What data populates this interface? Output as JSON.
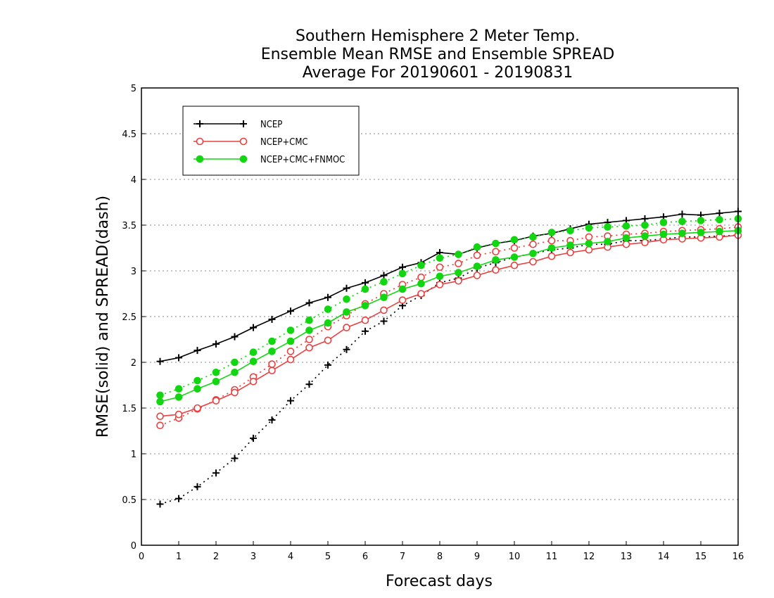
{
  "chart_data": {
    "type": "line",
    "title": [
      "Southern Hemisphere 2 Meter Temp.",
      "Ensemble Mean RMSE and Ensemble SPREAD",
      "Average For 20190601 - 20190831"
    ],
    "xlabel": "Forecast days",
    "ylabel": "RMSE(solid) and SPREAD(dash)",
    "xlim": [
      0,
      16
    ],
    "ylim": [
      0,
      5
    ],
    "xticks": [
      "0",
      "1",
      "2",
      "3",
      "4",
      "5",
      "6",
      "7",
      "8",
      "9",
      "10",
      "11",
      "12",
      "13",
      "14",
      "15",
      "16"
    ],
    "yticks": [
      "0",
      "0.5",
      "1",
      "1.5",
      "2",
      "2.5",
      "3",
      "3.5",
      "4",
      "4.5",
      "5"
    ],
    "grid": "horizontal dotted",
    "legend_position": "top-left",
    "x": [
      0.5,
      1,
      1.5,
      2,
      2.5,
      3,
      3.5,
      4,
      4.5,
      5,
      5.5,
      6,
      6.5,
      7,
      7.5,
      8,
      8.5,
      9,
      9.5,
      10,
      10.5,
      11,
      11.5,
      12,
      12.5,
      13,
      13.5,
      14,
      14.5,
      15,
      15.5,
      16
    ],
    "series": [
      {
        "name": "NCEP",
        "color": "#000000",
        "marker": "plus",
        "rmse": [
          2.01,
          2.05,
          2.13,
          2.2,
          2.28,
          2.38,
          2.47,
          2.56,
          2.65,
          2.71,
          2.81,
          2.87,
          2.95,
          3.04,
          3.09,
          3.2,
          3.18,
          3.25,
          3.3,
          3.33,
          3.38,
          3.41,
          3.46,
          3.51,
          3.53,
          3.55,
          3.57,
          3.59,
          3.62,
          3.61,
          3.63,
          3.65
        ],
        "spread": [
          0.45,
          0.51,
          0.64,
          0.79,
          0.95,
          1.17,
          1.37,
          1.58,
          1.76,
          1.97,
          2.14,
          2.34,
          2.45,
          2.62,
          2.73,
          2.87,
          2.92,
          3.03,
          3.09,
          3.15,
          3.19,
          3.23,
          3.25,
          3.29,
          3.29,
          3.33,
          3.33,
          3.35,
          3.37,
          3.37,
          3.38,
          3.39
        ]
      },
      {
        "name": "NCEP+CMC",
        "color": "#ec4040",
        "marker": "open-circle",
        "rmse": [
          1.41,
          1.43,
          1.5,
          1.58,
          1.67,
          1.79,
          1.91,
          2.03,
          2.16,
          2.24,
          2.38,
          2.46,
          2.57,
          2.68,
          2.75,
          2.85,
          2.89,
          2.95,
          3.01,
          3.06,
          3.1,
          3.16,
          3.2,
          3.23,
          3.26,
          3.29,
          3.31,
          3.34,
          3.35,
          3.36,
          3.37,
          3.39
        ],
        "spread": [
          1.31,
          1.39,
          1.49,
          1.59,
          1.7,
          1.84,
          1.98,
          2.12,
          2.25,
          2.39,
          2.51,
          2.64,
          2.75,
          2.85,
          2.93,
          3.04,
          3.08,
          3.17,
          3.21,
          3.25,
          3.29,
          3.33,
          3.33,
          3.37,
          3.38,
          3.4,
          3.41,
          3.43,
          3.44,
          3.45,
          3.46,
          3.48
        ]
      },
      {
        "name": "NCEP+CMC+FNMOC",
        "color": "#11d611",
        "marker": "filled-circle",
        "rmse": [
          1.57,
          1.62,
          1.71,
          1.79,
          1.89,
          2.01,
          2.12,
          2.23,
          2.35,
          2.43,
          2.55,
          2.62,
          2.71,
          2.8,
          2.86,
          2.94,
          2.98,
          3.05,
          3.12,
          3.15,
          3.19,
          3.25,
          3.28,
          3.3,
          3.32,
          3.36,
          3.38,
          3.4,
          3.41,
          3.42,
          3.43,
          3.44
        ],
        "spread": [
          1.64,
          1.71,
          1.8,
          1.89,
          2.0,
          2.11,
          2.23,
          2.35,
          2.46,
          2.58,
          2.69,
          2.8,
          2.88,
          2.97,
          3.06,
          3.14,
          3.18,
          3.26,
          3.3,
          3.34,
          3.37,
          3.42,
          3.44,
          3.47,
          3.48,
          3.49,
          3.5,
          3.53,
          3.54,
          3.55,
          3.56,
          3.57
        ]
      }
    ]
  }
}
